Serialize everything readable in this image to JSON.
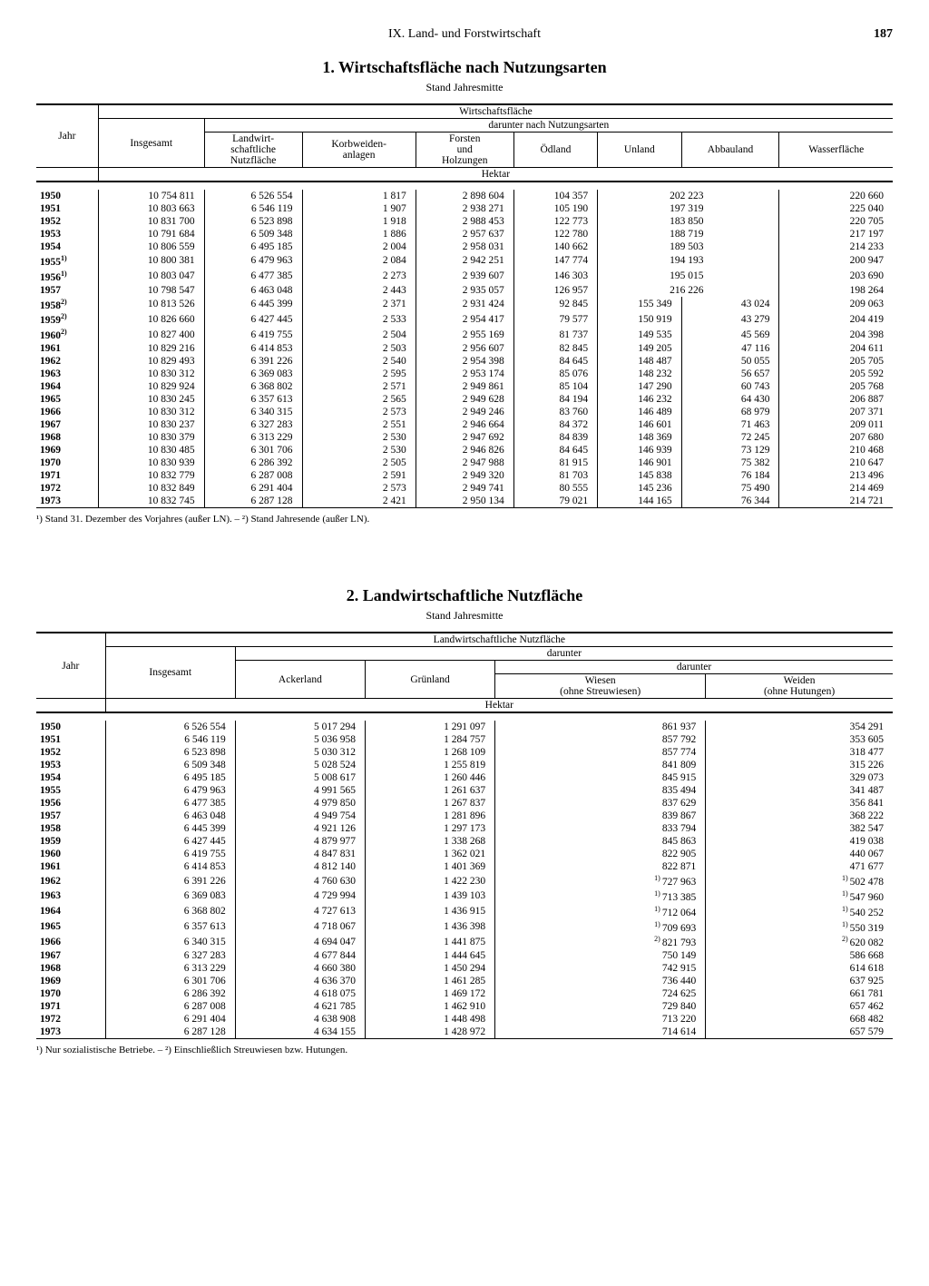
{
  "page": {
    "chapter": "IX. Land- und Forstwirtschaft",
    "number": "187"
  },
  "table1": {
    "title": "1. Wirtschaftsfläche nach Nutzungsarten",
    "subtitle": "Stand Jahresmitte",
    "headers": {
      "jahr": "Jahr",
      "wf": "Wirtschaftsfläche",
      "darunter": "darunter nach Nutzungsarten",
      "insgesamt": "Insgesamt",
      "ln": "Landwirt-\nschaftliche\nNutzfläche",
      "korb": "Korbweiden-\nanlagen",
      "forsten": "Forsten\nund\nHolzungen",
      "oedland": "Ödland",
      "unland": "Unland",
      "abbau": "Abbauland",
      "wasser": "Wasserfläche",
      "hektar": "Hektar"
    },
    "columns": [
      "jahr",
      "insgesamt",
      "ln",
      "korb",
      "forsten",
      "oedland",
      "unland",
      "abbau",
      "wasser"
    ],
    "rows": [
      {
        "jahr": "1950",
        "insgesamt": "10 754 811",
        "ln": "6 526 554",
        "korb": "1 817",
        "forsten": "2 898 604",
        "oedland": "104 357",
        "unland_abbau_merged": "202 223",
        "wasser": "220 660"
      },
      {
        "jahr": "1951",
        "insgesamt": "10 803 663",
        "ln": "6 546 119",
        "korb": "1 907",
        "forsten": "2 938 271",
        "oedland": "105 190",
        "unland_abbau_merged": "197 319",
        "wasser": "225 040"
      },
      {
        "jahr": "1952",
        "insgesamt": "10 831 700",
        "ln": "6 523 898",
        "korb": "1 918",
        "forsten": "2 988 453",
        "oedland": "122 773",
        "unland_abbau_merged": "183 850",
        "wasser": "220 705"
      },
      {
        "jahr": "1953",
        "insgesamt": "10 791 684",
        "ln": "6 509 348",
        "korb": "1 886",
        "forsten": "2 957 637",
        "oedland": "122 780",
        "unland_abbau_merged": "188 719",
        "wasser": "217 197"
      },
      {
        "jahr": "1954",
        "insgesamt": "10 806 559",
        "ln": "6 495 185",
        "korb": "2 004",
        "forsten": "2 958 031",
        "oedland": "140 662",
        "unland_abbau_merged": "189 503",
        "wasser": "214 233"
      },
      {
        "jahr": "1955",
        "note": "1",
        "insgesamt": "10 800 381",
        "ln": "6 479 963",
        "korb": "2 084",
        "forsten": "2 942 251",
        "oedland": "147 774",
        "unland_abbau_merged": "194 193",
        "wasser": "200 947"
      },
      {
        "jahr": "1956",
        "note": "1",
        "insgesamt": "10 803 047",
        "ln": "6 477 385",
        "korb": "2 273",
        "forsten": "2 939 607",
        "oedland": "146 303",
        "unland_abbau_merged": "195 015",
        "wasser": "203 690"
      },
      {
        "jahr": "1957",
        "insgesamt": "10 798 547",
        "ln": "6 463 048",
        "korb": "2 443",
        "forsten": "2 935 057",
        "oedland": "126 957",
        "unland_abbau_merged": "216 226",
        "wasser": "198 264"
      },
      {
        "jahr": "1958",
        "note": "2",
        "insgesamt": "10 813 526",
        "ln": "6 445 399",
        "korb": "2 371",
        "forsten": "2 931 424",
        "oedland": "92 845",
        "unland": "155 349",
        "abbau": "43 024",
        "wasser": "209 063"
      },
      {
        "jahr": "1959",
        "note": "2",
        "insgesamt": "10 826 660",
        "ln": "6 427 445",
        "korb": "2 533",
        "forsten": "2 954 417",
        "oedland": "79 577",
        "unland": "150 919",
        "abbau": "43 279",
        "wasser": "204 419"
      },
      {
        "jahr": "1960",
        "note": "2",
        "insgesamt": "10 827 400",
        "ln": "6 419 755",
        "korb": "2 504",
        "forsten": "2 955 169",
        "oedland": "81 737",
        "unland": "149 535",
        "abbau": "45 569",
        "wasser": "204 398"
      },
      {
        "jahr": "1961",
        "insgesamt": "10 829 216",
        "ln": "6 414 853",
        "korb": "2 503",
        "forsten": "2 956 607",
        "oedland": "82 845",
        "unland": "149 205",
        "abbau": "47 116",
        "wasser": "204 611"
      },
      {
        "jahr": "1962",
        "insgesamt": "10 829 493",
        "ln": "6 391 226",
        "korb": "2 540",
        "forsten": "2 954 398",
        "oedland": "84 645",
        "unland": "148 487",
        "abbau": "50 055",
        "wasser": "205 705"
      },
      {
        "jahr": "1963",
        "insgesamt": "10 830 312",
        "ln": "6 369 083",
        "korb": "2 595",
        "forsten": "2 953 174",
        "oedland": "85 076",
        "unland": "148 232",
        "abbau": "56 657",
        "wasser": "205 592"
      },
      {
        "jahr": "1964",
        "insgesamt": "10 829 924",
        "ln": "6 368 802",
        "korb": "2 571",
        "forsten": "2 949 861",
        "oedland": "85 104",
        "unland": "147 290",
        "abbau": "60 743",
        "wasser": "205 768"
      },
      {
        "jahr": "1965",
        "insgesamt": "10 830 245",
        "ln": "6 357 613",
        "korb": "2 565",
        "forsten": "2 949 628",
        "oedland": "84 194",
        "unland": "146 232",
        "abbau": "64 430",
        "wasser": "206 887"
      },
      {
        "jahr": "1966",
        "insgesamt": "10 830 312",
        "ln": "6 340 315",
        "korb": "2 573",
        "forsten": "2 949 246",
        "oedland": "83 760",
        "unland": "146 489",
        "abbau": "68 979",
        "wasser": "207 371"
      },
      {
        "jahr": "1967",
        "insgesamt": "10 830 237",
        "ln": "6 327 283",
        "korb": "2 551",
        "forsten": "2 946 664",
        "oedland": "84 372",
        "unland": "146 601",
        "abbau": "71 463",
        "wasser": "209 011"
      },
      {
        "jahr": "1968",
        "insgesamt": "10 830 379",
        "ln": "6 313 229",
        "korb": "2 530",
        "forsten": "2 947 692",
        "oedland": "84 839",
        "unland": "148 369",
        "abbau": "72 245",
        "wasser": "207 680"
      },
      {
        "jahr": "1969",
        "insgesamt": "10 830 485",
        "ln": "6 301 706",
        "korb": "2 530",
        "forsten": "2 946 826",
        "oedland": "84 645",
        "unland": "146 939",
        "abbau": "73 129",
        "wasser": "210 468"
      },
      {
        "jahr": "1970",
        "insgesamt": "10 830 939",
        "ln": "6 286 392",
        "korb": "2 505",
        "forsten": "2 947 988",
        "oedland": "81 915",
        "unland": "146 901",
        "abbau": "75 382",
        "wasser": "210 647"
      },
      {
        "jahr": "1971",
        "insgesamt": "10 832 779",
        "ln": "6 287 008",
        "korb": "2 591",
        "forsten": "2 949 320",
        "oedland": "81 703",
        "unland": "145 838",
        "abbau": "76 184",
        "wasser": "213 496"
      },
      {
        "jahr": "1972",
        "insgesamt": "10 832 849",
        "ln": "6 291 404",
        "korb": "2 573",
        "forsten": "2 949 741",
        "oedland": "80 555",
        "unland": "145 236",
        "abbau": "75 490",
        "wasser": "214 469"
      },
      {
        "jahr": "1973",
        "insgesamt": "10 832 745",
        "ln": "6 287 128",
        "korb": "2 421",
        "forsten": "2 950 134",
        "oedland": "79 021",
        "unland": "144 165",
        "abbau": "76 344",
        "wasser": "214 721"
      }
    ],
    "footnote": "¹) Stand 31. Dezember des Vorjahres (außer LN). – ²) Stand Jahresende (außer LN)."
  },
  "table2": {
    "title": "2. Landwirtschaftliche Nutzfläche",
    "subtitle": "Stand Jahresmitte",
    "headers": {
      "jahr": "Jahr",
      "ln": "Landwirtschaftliche Nutzfläche",
      "darunter": "darunter",
      "insgesamt": "Insgesamt",
      "acker": "Ackerland",
      "gruen": "Grünland",
      "wiesen": "Wiesen\n(ohne Streuwiesen)",
      "weiden": "Weiden\n(ohne Hutungen)",
      "hektar": "Hektar"
    },
    "rows": [
      {
        "jahr": "1950",
        "insgesamt": "6 526 554",
        "acker": "5 017 294",
        "gruen": "1 291 097",
        "wiesen": "861 937",
        "weiden": "354 291"
      },
      {
        "jahr": "1951",
        "insgesamt": "6 546 119",
        "acker": "5 036 958",
        "gruen": "1 284 757",
        "wiesen": "857 792",
        "weiden": "353 605"
      },
      {
        "jahr": "1952",
        "insgesamt": "6 523 898",
        "acker": "5 030 312",
        "gruen": "1 268 109",
        "wiesen": "857 774",
        "weiden": "318 477"
      },
      {
        "jahr": "1953",
        "insgesamt": "6 509 348",
        "acker": "5 028 524",
        "gruen": "1 255 819",
        "wiesen": "841 809",
        "weiden": "315 226"
      },
      {
        "jahr": "1954",
        "insgesamt": "6 495 185",
        "acker": "5 008 617",
        "gruen": "1 260 446",
        "wiesen": "845 915",
        "weiden": "329 073"
      },
      {
        "jahr": "1955",
        "insgesamt": "6 479 963",
        "acker": "4 991 565",
        "gruen": "1 261 637",
        "wiesen": "835 494",
        "weiden": "341 487"
      },
      {
        "jahr": "1956",
        "insgesamt": "6 477 385",
        "acker": "4 979 850",
        "gruen": "1 267 837",
        "wiesen": "837 629",
        "weiden": "356 841"
      },
      {
        "jahr": "1957",
        "insgesamt": "6 463 048",
        "acker": "4 949 754",
        "gruen": "1 281 896",
        "wiesen": "839 867",
        "weiden": "368 222"
      },
      {
        "jahr": "1958",
        "insgesamt": "6 445 399",
        "acker": "4 921 126",
        "gruen": "1 297 173",
        "wiesen": "833 794",
        "weiden": "382 547"
      },
      {
        "jahr": "1959",
        "insgesamt": "6 427 445",
        "acker": "4 879 977",
        "gruen": "1 338 268",
        "wiesen": "845 863",
        "weiden": "419 038"
      },
      {
        "jahr": "1960",
        "insgesamt": "6 419 755",
        "acker": "4 847 831",
        "gruen": "1 362 021",
        "wiesen": "822 905",
        "weiden": "440 067"
      },
      {
        "jahr": "1961",
        "insgesamt": "6 414 853",
        "acker": "4 812 140",
        "gruen": "1 401 369",
        "wiesen": "822 871",
        "weiden": "471 677"
      },
      {
        "jahr": "1962",
        "insgesamt": "6 391 226",
        "acker": "4 760 630",
        "gruen": "1 422 230",
        "wiesen": "727 963",
        "wiesen_note": "1",
        "weiden": "502 478",
        "weiden_note": "1"
      },
      {
        "jahr": "1963",
        "insgesamt": "6 369 083",
        "acker": "4 729 994",
        "gruen": "1 439 103",
        "wiesen": "713 385",
        "wiesen_note": "1",
        "weiden": "547 960",
        "weiden_note": "1"
      },
      {
        "jahr": "1964",
        "insgesamt": "6 368 802",
        "acker": "4 727 613",
        "gruen": "1 436 915",
        "wiesen": "712 064",
        "wiesen_note": "1",
        "weiden": "540 252",
        "weiden_note": "1"
      },
      {
        "jahr": "1965",
        "insgesamt": "6 357 613",
        "acker": "4 718 067",
        "gruen": "1 436 398",
        "wiesen": "709 693",
        "wiesen_note": "1",
        "weiden": "550 319",
        "weiden_note": "1"
      },
      {
        "jahr": "1966",
        "insgesamt": "6 340 315",
        "acker": "4 694 047",
        "gruen": "1 441 875",
        "wiesen": "821 793",
        "wiesen_note": "2",
        "weiden": "620 082",
        "weiden_note": "2"
      },
      {
        "jahr": "1967",
        "insgesamt": "6 327 283",
        "acker": "4 677 844",
        "gruen": "1 444 645",
        "wiesen": "750 149",
        "weiden": "586 668"
      },
      {
        "jahr": "1968",
        "insgesamt": "6 313 229",
        "acker": "4 660 380",
        "gruen": "1 450 294",
        "wiesen": "742 915",
        "weiden": "614 618"
      },
      {
        "jahr": "1969",
        "insgesamt": "6 301 706",
        "acker": "4 636 370",
        "gruen": "1 461 285",
        "wiesen": "736 440",
        "weiden": "637 925"
      },
      {
        "jahr": "1970",
        "insgesamt": "6 286 392",
        "acker": "4 618 075",
        "gruen": "1 469 172",
        "wiesen": "724 625",
        "weiden": "661 781"
      },
      {
        "jahr": "1971",
        "insgesamt": "6 287 008",
        "acker": "4 621 785",
        "gruen": "1 462 910",
        "wiesen": "729 840",
        "weiden": "657 462"
      },
      {
        "jahr": "1972",
        "insgesamt": "6 291 404",
        "acker": "4 638 908",
        "gruen": "1 448 498",
        "wiesen": "713 220",
        "weiden": "668 482"
      },
      {
        "jahr": "1973",
        "insgesamt": "6 287 128",
        "acker": "4 634 155",
        "gruen": "1 428 972",
        "wiesen": "714 614",
        "weiden": "657 579"
      }
    ],
    "footnote": "¹) Nur sozialistische Betriebe. – ²) Einschließlich Streuwiesen bzw. Hutungen."
  }
}
